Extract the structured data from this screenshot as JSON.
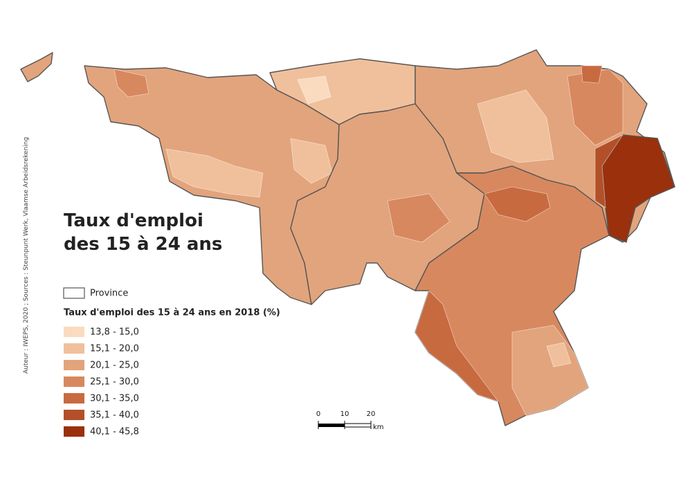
{
  "title": [
    "Taux d'emploi",
    "des 15 à 24 ans"
  ],
  "source": "Auteur : IWEPS, 2020 ; Sources : Steunpunt Werk, Vlaamse Arbeidsrekening",
  "legend": {
    "province": "Province",
    "title": "Taux d'emploi des 15 à 24 ans en 2018 (%)",
    "classes": [
      {
        "label": "13,8 - 15,0",
        "color": "#fadbbf"
      },
      {
        "label": "15,1 - 20,0",
        "color": "#f0c09c"
      },
      {
        "label": "20,1 - 25,0",
        "color": "#e2a47c"
      },
      {
        "label": "25,1 - 30,0",
        "color": "#d8885f"
      },
      {
        "label": "30,1 - 35,0",
        "color": "#c86a40"
      },
      {
        "label": "35,1 - 40,0",
        "color": "#b3502a"
      },
      {
        "label": "40,1 - 45,8",
        "color": "#9b300c"
      }
    ]
  },
  "scale_bar": {
    "ticks": [
      0,
      10,
      20
    ],
    "unit": "km"
  }
}
